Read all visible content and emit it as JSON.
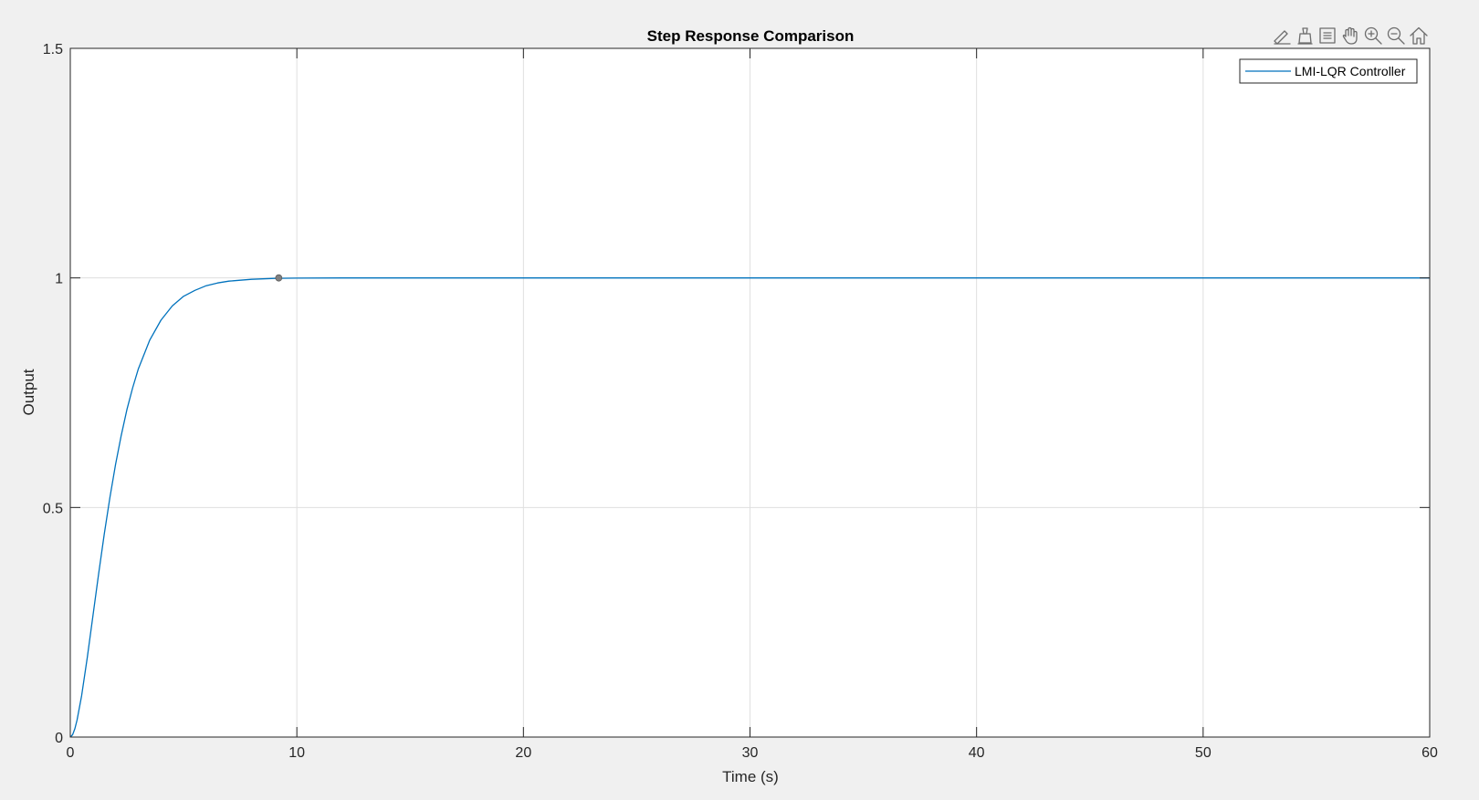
{
  "colors": {
    "figure_background": "#f0f0f0",
    "axes_background": "#ffffff",
    "series_line": "#0072bd",
    "grid": "#dfdfdf",
    "axes_edge": "#262626",
    "marker": "#808080",
    "toolbar_icon": "#6d6d6d"
  },
  "toolbar": {
    "icons": [
      "brush-edit-icon",
      "data-cursor-icon",
      "legend-toggle-icon",
      "pan-hand-icon",
      "zoom-in-icon",
      "zoom-out-icon",
      "home-restore-icon"
    ]
  },
  "chart_data": {
    "type": "line",
    "title": "Step Response Comparison",
    "xlabel": "Time (s)",
    "ylabel": "Output",
    "xlim": [
      0,
      60
    ],
    "ylim": [
      0,
      1.5
    ],
    "xticks": [
      0,
      10,
      20,
      30,
      40,
      50,
      60
    ],
    "xtick_labels": [
      "0",
      "10",
      "20",
      "30",
      "40",
      "50",
      "60"
    ],
    "yticks": [
      0,
      0.5,
      1,
      1.5
    ],
    "ytick_labels": [
      "0",
      "0.5",
      "1",
      "1.5"
    ],
    "grid": true,
    "legend": {
      "placement": "top-right",
      "entries": [
        "LMI-LQR Controller"
      ]
    },
    "series": [
      {
        "name": "LMI-LQR Controller",
        "x": [
          0,
          0.1,
          0.2,
          0.3,
          0.5,
          0.75,
          1,
          1.25,
          1.5,
          1.75,
          2,
          2.25,
          2.5,
          2.75,
          3,
          3.5,
          4,
          4.5,
          5,
          5.5,
          6,
          6.5,
          7,
          7.5,
          8,
          8.5,
          9,
          9.2,
          10,
          12,
          15,
          20,
          30,
          40,
          50,
          60
        ],
        "y": [
          0,
          0.005,
          0.018,
          0.037,
          0.09,
          0.173,
          0.264,
          0.355,
          0.442,
          0.522,
          0.594,
          0.657,
          0.713,
          0.76,
          0.801,
          0.864,
          0.908,
          0.939,
          0.96,
          0.973,
          0.983,
          0.989,
          0.993,
          0.995,
          0.997,
          0.998,
          0.999,
          0.9992,
          0.9995,
          0.9999,
          1,
          1,
          1,
          1,
          1,
          1
        ]
      }
    ],
    "marker_point": {
      "x": 9.2,
      "y": 1
    }
  }
}
